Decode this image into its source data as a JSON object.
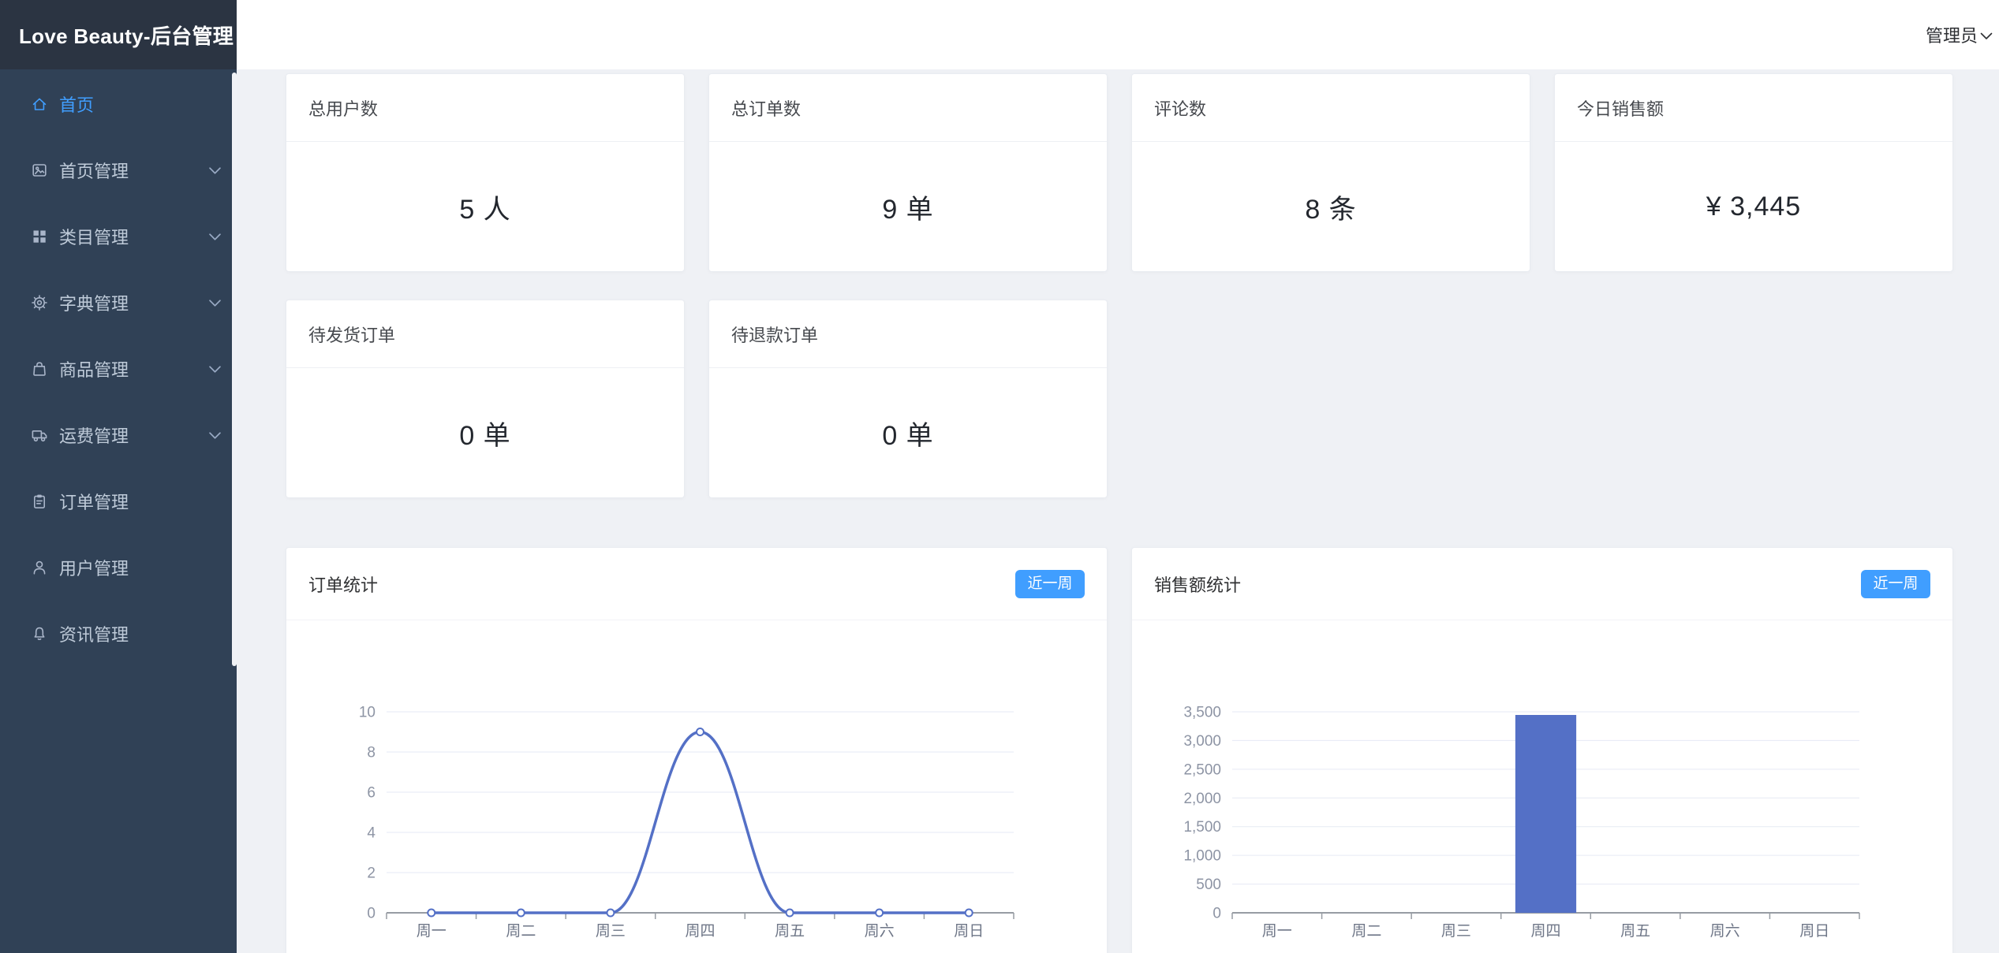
{
  "app": {
    "title": "Love Beauty-后台管理",
    "user": "管理员"
  },
  "colors": {
    "accent": "#409eff",
    "series": "#5470c6",
    "sidebar_bg": "#304156",
    "sidebar_logo_bg": "#2b3442",
    "content_bg": "#eff1f5"
  },
  "sidebar": {
    "items": [
      {
        "key": "home",
        "label": "首页",
        "icon": "home-icon",
        "active": true,
        "expandable": false
      },
      {
        "key": "homepage-manage",
        "label": "首页管理",
        "icon": "image-icon",
        "active": false,
        "expandable": true
      },
      {
        "key": "category-manage",
        "label": "类目管理",
        "icon": "grid-icon",
        "active": false,
        "expandable": true
      },
      {
        "key": "dictionary-manage",
        "label": "字典管理",
        "icon": "gear-icon",
        "active": false,
        "expandable": true
      },
      {
        "key": "goods-manage",
        "label": "商品管理",
        "icon": "bag-icon",
        "active": false,
        "expandable": true
      },
      {
        "key": "freight-manage",
        "label": "运费管理",
        "icon": "truck-icon",
        "active": false,
        "expandable": true
      },
      {
        "key": "order-manage",
        "label": "订单管理",
        "icon": "clipboard-icon",
        "active": false,
        "expandable": false
      },
      {
        "key": "user-manage",
        "label": "用户管理",
        "icon": "user-icon",
        "active": false,
        "expandable": false
      },
      {
        "key": "news-manage",
        "label": "资讯管理",
        "icon": "bell-icon",
        "active": false,
        "expandable": false
      }
    ]
  },
  "stats": {
    "row1": [
      {
        "key": "total-users",
        "title": "总用户数",
        "value": "5 人"
      },
      {
        "key": "total-orders",
        "title": "总订单数",
        "value": "9 单"
      },
      {
        "key": "comments",
        "title": "评论数",
        "value": "8 条"
      },
      {
        "key": "today-sales",
        "title": "今日销售额",
        "value": "¥ 3,445"
      }
    ],
    "row2": [
      {
        "key": "pending-ship",
        "title": "待发货订单",
        "value": "0 单"
      },
      {
        "key": "pending-refund",
        "title": "待退款订单",
        "value": "0 单"
      }
    ]
  },
  "chart_data": [
    {
      "type": "line",
      "title": "订单统计",
      "range_button": "近一周",
      "categories": [
        "周一",
        "周二",
        "周三",
        "周四",
        "周五",
        "周六",
        "周日"
      ],
      "values": [
        0,
        0,
        0,
        9,
        0,
        0,
        0
      ],
      "ylim": [
        0,
        10
      ],
      "yticks": [
        0,
        2,
        4,
        6,
        8,
        10
      ],
      "xlabel": "",
      "ylabel": "",
      "smooth": true,
      "grid": true,
      "legend": "none",
      "color": "#5470c6"
    },
    {
      "type": "bar",
      "title": "销售额统计",
      "range_button": "近一周",
      "categories": [
        "周一",
        "周二",
        "周三",
        "周四",
        "周五",
        "周六",
        "周日"
      ],
      "values": [
        0,
        0,
        0,
        3445,
        0,
        0,
        0
      ],
      "ylim": [
        0,
        3500
      ],
      "yticks": [
        0,
        500,
        1000,
        1500,
        2000,
        2500,
        3000,
        3500
      ],
      "xlabel": "",
      "ylabel": "",
      "grid": true,
      "legend": "none",
      "color": "#5470c6"
    }
  ]
}
